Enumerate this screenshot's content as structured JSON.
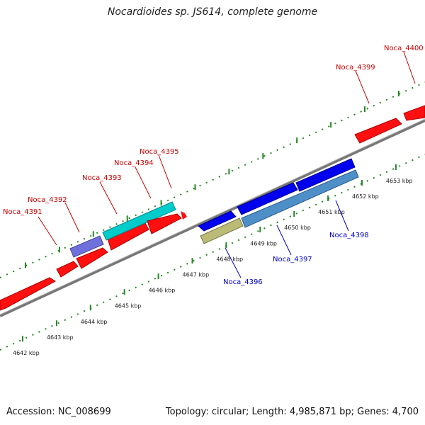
{
  "title": "Nocardioides sp. JS614, complete genome",
  "footer": {
    "accession": "Accession: NC_008699",
    "summary": "Topology: circular; Length: 4,985,871 bp; Genes: 4,700"
  },
  "colors": {
    "forward_gene": "#ff0000",
    "reverse_gene": "#0000ff",
    "forward_label": "#cc0000",
    "reverse_label": "#0000cc",
    "teal_gene": "#00cccc",
    "purple_gene": "#7070dd",
    "olive_gene": "#bbbb77",
    "steel_gene": "#4f8fc8",
    "backbone": "#888888",
    "tick": "#228822"
  },
  "scale_labels": [
    "4642 kbp",
    "4643 kbp",
    "4644 kbp",
    "4645 kbp",
    "4646 kbp",
    "4647 kbp",
    "4648 kbp",
    "4649 kbp",
    "4650 kbp",
    "4651 kbp",
    "4652 kbp",
    "4653 kbp"
  ],
  "forward_gene_labels": [
    "Noca_4391",
    "Noca_4392",
    "Noca_4393",
    "Noca_4394",
    "Noca_4395",
    "Noca_4399",
    "Noca_4400"
  ],
  "reverse_gene_labels": [
    "Noca_4396",
    "Noca_4397",
    "Noca_4398"
  ]
}
